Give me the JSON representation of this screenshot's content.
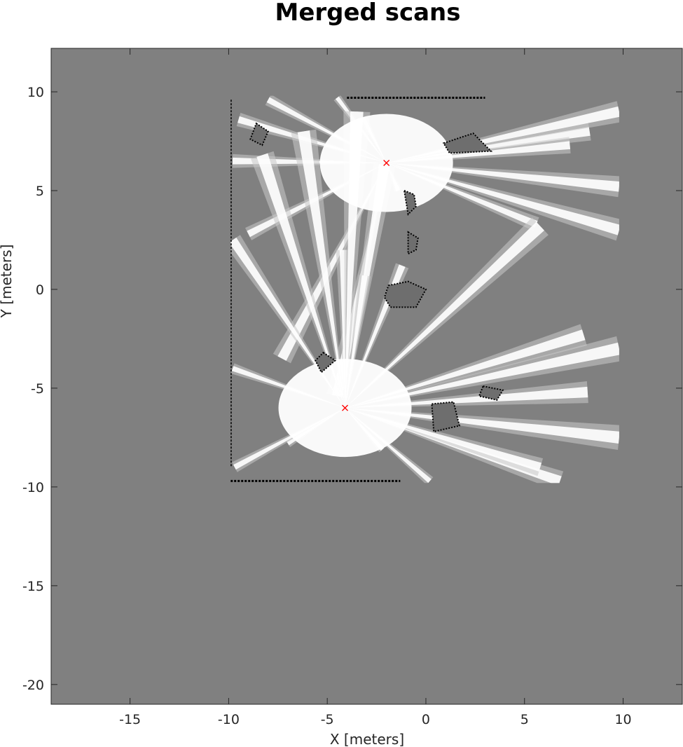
{
  "chart_data": {
    "type": "heatmap",
    "title": "Merged scans",
    "xlabel": "X [meters]",
    "ylabel": "Y [meters]",
    "xlim": [
      -19,
      13
    ],
    "ylim": [
      -21,
      12.2
    ],
    "xticks": [
      -15,
      -10,
      -5,
      0,
      5,
      10
    ],
    "yticks": [
      -20,
      -15,
      -10,
      -5,
      0,
      5,
      10
    ],
    "grid": false,
    "colors": {
      "unknown": "#808080",
      "free": "#ffffff",
      "occupied": "#000000",
      "partial": "#c8c8c8",
      "scan_origin_marker": "#ff0000"
    },
    "map_extent": {
      "x": [
        -9.9,
        9.8
      ],
      "y": [
        -9.8,
        9.8
      ]
    },
    "scan_origins": [
      {
        "x": -2.0,
        "y": 6.4
      },
      {
        "x": -4.1,
        "y": -6.0
      }
    ],
    "walls": [
      {
        "points": [
          [
            -9.9,
            9.6
          ],
          [
            -9.9,
            -9.0
          ]
        ]
      },
      {
        "points": [
          [
            -9.9,
            -9.7
          ],
          [
            -1.3,
            -9.7
          ]
        ]
      },
      {
        "points": [
          [
            -4.0,
            9.7
          ],
          [
            3.0,
            9.7
          ]
        ]
      }
    ],
    "obstacles": [
      {
        "points": [
          [
            -1.9,
            0.2
          ],
          [
            -0.9,
            0.4
          ],
          [
            0.0,
            0.0
          ],
          [
            -0.5,
            -0.9
          ],
          [
            -1.8,
            -0.9
          ],
          [
            -2.1,
            -0.4
          ]
        ]
      },
      {
        "points": [
          [
            -1.1,
            5.0
          ],
          [
            -0.6,
            4.8
          ],
          [
            -0.5,
            4.2
          ],
          [
            -0.9,
            3.8
          ]
        ]
      },
      {
        "points": [
          [
            -0.9,
            2.9
          ],
          [
            -0.4,
            2.6
          ],
          [
            -0.5,
            2.0
          ],
          [
            -0.9,
            1.8
          ]
        ]
      },
      {
        "points": [
          [
            0.3,
            -5.8
          ],
          [
            1.4,
            -5.7
          ],
          [
            1.7,
            -6.9
          ],
          [
            0.4,
            -7.2
          ]
        ]
      },
      {
        "points": [
          [
            2.9,
            -4.9
          ],
          [
            3.9,
            -5.1
          ],
          [
            3.6,
            -5.6
          ],
          [
            2.7,
            -5.4
          ]
        ]
      },
      {
        "points": [
          [
            -5.2,
            -3.2
          ],
          [
            -4.6,
            -3.6
          ],
          [
            -5.3,
            -4.2
          ],
          [
            -5.6,
            -3.6
          ]
        ]
      },
      {
        "points": [
          [
            -8.6,
            8.4
          ],
          [
            -8.0,
            8.0
          ],
          [
            -8.3,
            7.3
          ],
          [
            -8.9,
            7.6
          ]
        ]
      },
      {
        "points": [
          [
            0.9,
            7.4
          ],
          [
            2.4,
            7.9
          ],
          [
            3.3,
            7.0
          ],
          [
            1.2,
            6.9
          ]
        ]
      }
    ],
    "rays_from_origin_1": [
      [
        5.6,
        3.3
      ],
      [
        8.3,
        8.0
      ],
      [
        7.3,
        7.3
      ],
      [
        9.8,
        9.0
      ],
      [
        9.8,
        5.2
      ],
      [
        9.8,
        3.0
      ],
      [
        -8.0,
        9.6
      ],
      [
        -9.5,
        8.6
      ],
      [
        -9.8,
        6.5
      ],
      [
        -9.0,
        2.8
      ],
      [
        -7.3,
        -3.5
      ],
      [
        -4.5,
        9.7
      ],
      [
        -3.2,
        8.7
      ],
      [
        -1.4,
        5.0
      ],
      [
        -4.5,
        -5.4
      ]
    ],
    "rays_from_origin_2": [
      [
        5.8,
        3.2
      ],
      [
        8.0,
        -2.3
      ],
      [
        8.2,
        -5.2
      ],
      [
        9.8,
        -3.0
      ],
      [
        9.8,
        -7.5
      ],
      [
        6.8,
        -9.7
      ],
      [
        5.8,
        -9.0
      ],
      [
        0.2,
        -9.7
      ],
      [
        -2.2,
        -8.1
      ],
      [
        -7.0,
        -7.8
      ],
      [
        -9.7,
        -9.0
      ],
      [
        -9.8,
        -4.0
      ],
      [
        -9.8,
        2.5
      ],
      [
        -8.3,
        6.8
      ],
      [
        -4.2,
        2.0
      ],
      [
        -2.1,
        6.3
      ],
      [
        -3.5,
        9.0
      ],
      [
        -6.2,
        8.0
      ],
      [
        -1.2,
        1.2
      ],
      [
        -3.1,
        0.7
      ]
    ]
  }
}
